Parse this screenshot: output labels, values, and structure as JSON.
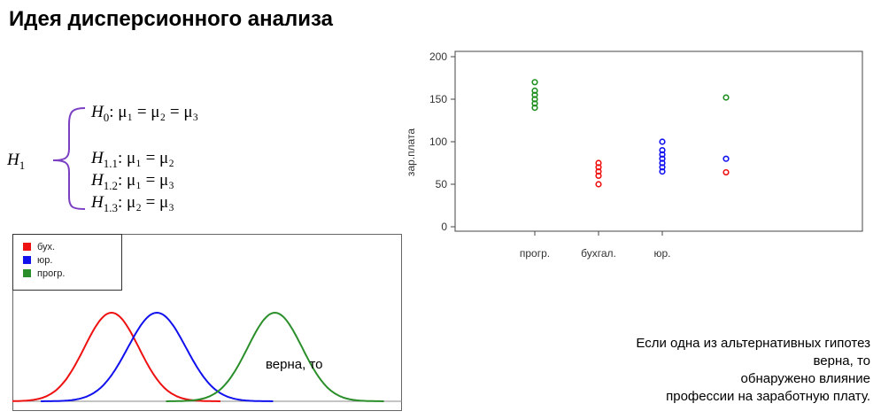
{
  "slide": {
    "title": "Идея дисперсионного анализа",
    "overlay_text": "верна, то",
    "note_lines": [
      "Если одна из альтернативных гипотез",
      "верна, то",
      "обнаружено влияние",
      "профессии на заработную плату."
    ]
  },
  "hypotheses": {
    "h1_symbol": "H",
    "h1_sub": "1",
    "h0": {
      "symbol": "H",
      "sub": "0",
      "expr": ": μ₁ = μ₂ = μ₃"
    },
    "alternatives": [
      {
        "symbol": "H",
        "sub": "1.1",
        "expr": ": μ₁ = μ₂"
      },
      {
        "symbol": "H",
        "sub": "1.2",
        "expr": ": μ₁ = μ₃"
      },
      {
        "symbol": "H",
        "sub": "1.3",
        "expr": ": μ₂ = μ₃"
      }
    ],
    "brace_color": "#7b3fc4"
  },
  "chart_data": [
    {
      "type": "scatter",
      "ylabel": "зар.плата",
      "xlabel": "",
      "ylim": [
        0,
        200
      ],
      "yticks": [
        "0",
        "50",
        "100",
        "150",
        "200"
      ],
      "categories": [
        "прогр.",
        "бухгал.",
        "юр."
      ],
      "grid": false,
      "series": [
        {
          "color": "#1f8f1f",
          "points": [
            [
              1,
              140
            ],
            [
              1,
              145
            ],
            [
              1,
              150
            ],
            [
              1,
              155
            ],
            [
              1,
              160
            ],
            [
              1,
              170
            ]
          ]
        },
        {
          "color": "#ee1111",
          "points": [
            [
              2,
              50
            ],
            [
              2,
              60
            ],
            [
              2,
              65
            ],
            [
              2,
              70
            ],
            [
              2,
              75
            ]
          ]
        },
        {
          "color": "#1111ee",
          "points": [
            [
              3,
              65
            ],
            [
              3,
              70
            ],
            [
              3,
              75
            ],
            [
              3,
              80
            ],
            [
              3,
              85
            ],
            [
              3,
              90
            ],
            [
              3,
              100
            ]
          ]
        },
        {
          "color": "#1f8f1f",
          "points": [
            [
              4,
              152
            ]
          ]
        },
        {
          "color": "#1111ee",
          "points": [
            [
              4,
              80
            ]
          ]
        },
        {
          "color": "#ee1111",
          "points": [
            [
              4,
              64
            ]
          ]
        }
      ]
    },
    {
      "type": "line",
      "legend": [
        "бух.",
        "юр.",
        "прогр."
      ],
      "legend_position": "top-left",
      "series": [
        {
          "name": "бух.",
          "color": "#ee1111",
          "mean": 60,
          "sd": 15
        },
        {
          "name": "юр.",
          "color": "#1111ee",
          "mean": 85,
          "sd": 16
        },
        {
          "name": "прогр.",
          "color": "#2a8f2a",
          "mean": 150,
          "sd": 15
        }
      ]
    }
  ]
}
